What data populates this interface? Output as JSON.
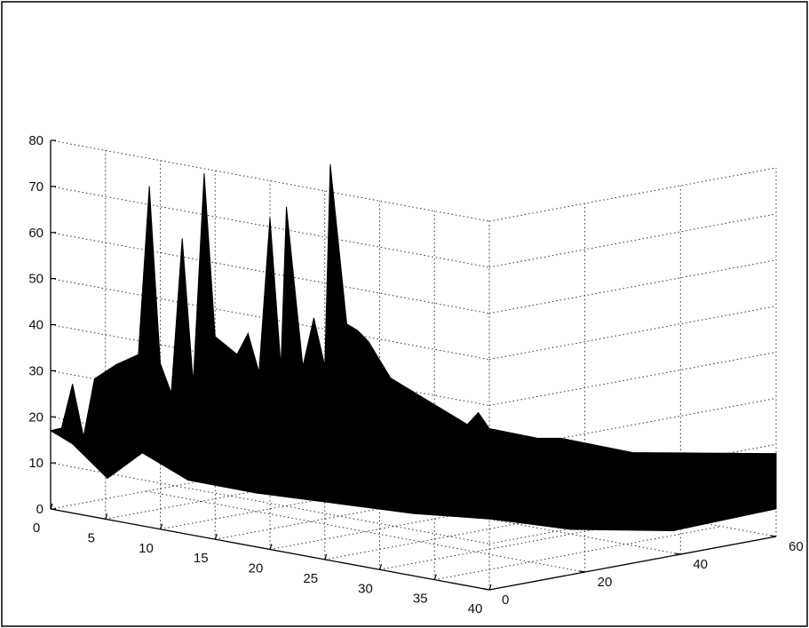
{
  "chart_data": {
    "type": "surface3d",
    "title": "",
    "xlabel": "",
    "ylabel": "",
    "zlabel": "",
    "x_ticks": [
      "0",
      "5",
      "10",
      "15",
      "20",
      "25",
      "30",
      "35",
      "40"
    ],
    "y_ticks": [
      "0",
      "20",
      "40",
      "60"
    ],
    "z_ticks": [
      "0",
      "10",
      "20",
      "30",
      "40",
      "50",
      "60",
      "70",
      "80"
    ],
    "xlim": [
      0,
      40
    ],
    "ylim": [
      0,
      60
    ],
    "zlim": [
      0,
      80
    ],
    "grid": true,
    "colormap": "black",
    "surface_color": "#000000",
    "peaks": [
      {
        "x": 9,
        "y": 0,
        "z": 74
      },
      {
        "x": 12,
        "y": 0,
        "z": 64
      },
      {
        "x": 14,
        "y": 0,
        "z": 79
      },
      {
        "x": 20,
        "y": 0,
        "z": 72
      },
      {
        "x": 21.5,
        "y": 0,
        "z": 75
      },
      {
        "x": 25.5,
        "y": 0,
        "z": 86
      },
      {
        "x": 25,
        "y": 1,
        "z": 54
      },
      {
        "x": 24,
        "y": 0,
        "z": 52
      }
    ],
    "front_edge_y0": [
      {
        "x": 0,
        "z": 17
      },
      {
        "x": 1,
        "z": 18
      },
      {
        "x": 2,
        "z": 28
      },
      {
        "x": 3,
        "z": 17
      },
      {
        "x": 4,
        "z": 30
      },
      {
        "x": 6,
        "z": 34
      },
      {
        "x": 8,
        "z": 37
      },
      {
        "x": 9,
        "z": 74
      },
      {
        "x": 10,
        "z": 36
      },
      {
        "x": 11,
        "z": 30
      },
      {
        "x": 12,
        "z": 64
      },
      {
        "x": 13,
        "z": 33
      },
      {
        "x": 14,
        "z": 79
      },
      {
        "x": 15,
        "z": 44
      },
      {
        "x": 17,
        "z": 41
      },
      {
        "x": 18,
        "z": 46
      },
      {
        "x": 19,
        "z": 38
      },
      {
        "x": 20,
        "z": 72
      },
      {
        "x": 21,
        "z": 40
      },
      {
        "x": 21.5,
        "z": 75
      },
      {
        "x": 23,
        "z": 41
      },
      {
        "x": 24,
        "z": 52
      },
      {
        "x": 25,
        "z": 42
      },
      {
        "x": 25.5,
        "z": 86
      },
      {
        "x": 27,
        "z": 52
      },
      {
        "x": 28,
        "z": 51
      },
      {
        "x": 29,
        "z": 49
      },
      {
        "x": 31,
        "z": 42
      },
      {
        "x": 33,
        "z": 40
      },
      {
        "x": 35,
        "z": 38
      },
      {
        "x": 37,
        "z": 36
      },
      {
        "x": 38,
        "z": 35
      },
      {
        "x": 39,
        "z": 38
      },
      {
        "x": 40,
        "z": 35
      }
    ],
    "back_edge_x40": [
      {
        "y": 0,
        "z": 35
      },
      {
        "y": 5,
        "z": 33
      },
      {
        "y": 10,
        "z": 31
      },
      {
        "y": 15,
        "z": 30
      },
      {
        "y": 20,
        "z": 28
      },
      {
        "y": 25,
        "z": 26
      },
      {
        "y": 30,
        "z": 24
      },
      {
        "y": 35,
        "z": 23
      },
      {
        "y": 40,
        "z": 22
      },
      {
        "y": 45,
        "z": 21
      },
      {
        "y": 50,
        "z": 20
      },
      {
        "y": 55,
        "z": 19
      },
      {
        "y": 60,
        "z": 18
      }
    ],
    "bottom_envelope": [
      {
        "x": 2,
        "y": 0,
        "z": 15
      },
      {
        "x": 3,
        "y": 5,
        "z": 7
      },
      {
        "x": 4,
        "y": 10,
        "z": 12
      },
      {
        "x": 6,
        "y": 15,
        "z": 6
      },
      {
        "x": 10,
        "y": 20,
        "z": 4
      },
      {
        "x": 15,
        "y": 25,
        "z": 3
      },
      {
        "x": 20,
        "y": 30,
        "z": 2
      },
      {
        "x": 25,
        "y": 35,
        "z": 2
      },
      {
        "x": 30,
        "y": 40,
        "z": 1
      },
      {
        "x": 35,
        "y": 50,
        "z": 1
      },
      {
        "x": 40,
        "y": 60,
        "z": 6
      }
    ]
  }
}
